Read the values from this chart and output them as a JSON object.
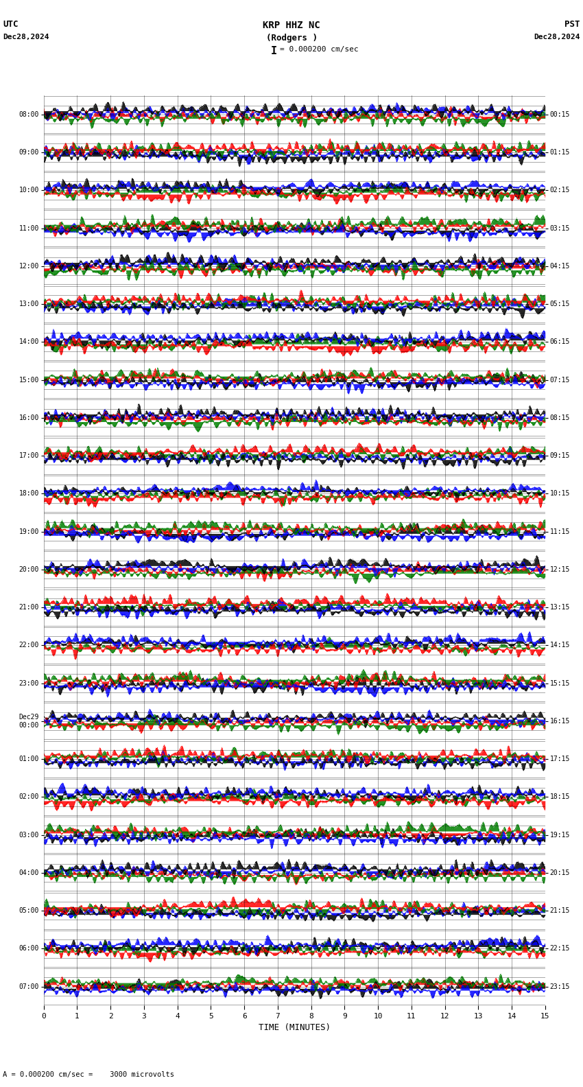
{
  "title_line1": "KRP HHZ NC",
  "title_line2": "(Rodgers )",
  "scale_label": "= 0.000200 cm/sec",
  "utc_label": "UTC",
  "pst_label": "PST",
  "date_left": "Dec28,2024",
  "date_right": "Dec28,2024",
  "bottom_label": "A = 0.000200 cm/sec =    3000 microvolts",
  "xlabel": "TIME (MINUTES)",
  "left_times": [
    "08:00",
    "09:00",
    "10:00",
    "11:00",
    "12:00",
    "13:00",
    "14:00",
    "15:00",
    "16:00",
    "17:00",
    "18:00",
    "19:00",
    "20:00",
    "21:00",
    "22:00",
    "23:00",
    "Dec29\n00:00",
    "01:00",
    "02:00",
    "03:00",
    "04:00",
    "05:00",
    "06:00",
    "07:00"
  ],
  "right_times": [
    "00:15",
    "01:15",
    "02:15",
    "03:15",
    "04:15",
    "05:15",
    "06:15",
    "07:15",
    "08:15",
    "09:15",
    "10:15",
    "11:15",
    "12:15",
    "13:15",
    "14:15",
    "15:15",
    "16:15",
    "17:15",
    "18:15",
    "19:15",
    "20:15",
    "21:15",
    "22:15",
    "23:15"
  ],
  "n_traces": 24,
  "n_samples": 9000,
  "xmin": 0,
  "xmax": 15,
  "colors": [
    "red",
    "blue",
    "green",
    "black"
  ],
  "bg_color": "white",
  "seed": 42
}
